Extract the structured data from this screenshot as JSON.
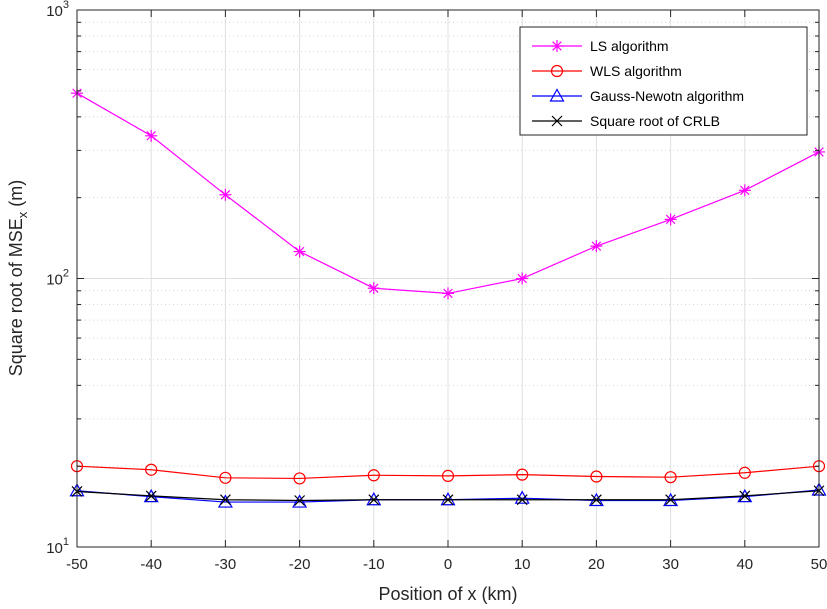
{
  "chart_data": {
    "type": "line",
    "xlabel": "Position of x (km)",
    "ylabel": "Square root of MSE",
    "ylabel_subscript": "x",
    "ylabel_unit": " (m)",
    "x": [
      -50,
      -40,
      -30,
      -20,
      -10,
      0,
      10,
      20,
      30,
      40,
      50
    ],
    "xlim": [
      -50,
      50
    ],
    "ylim": [
      10,
      1000
    ],
    "yscale": "log",
    "grid": true,
    "minor_grid": true,
    "legend_position": "top-right",
    "x_tick_labels": [
      "-50",
      "-40",
      "-30",
      "-20",
      "-10",
      "0",
      "10",
      "20",
      "30",
      "40",
      "50"
    ],
    "y_tick_labels": [
      {
        "value": 10,
        "base": "10",
        "exp": "1"
      },
      {
        "value": 100,
        "base": "10",
        "exp": "2"
      },
      {
        "value": 1000,
        "base": "10",
        "exp": "3"
      }
    ],
    "series": [
      {
        "name": "LS algorithm",
        "color": "#ff00ff",
        "marker": "asterisk",
        "values": [
          490,
          340,
          205,
          126,
          92,
          88,
          100,
          132,
          166,
          213,
          296
        ]
      },
      {
        "name": "WLS algorithm",
        "color": "#ff0000",
        "marker": "circle",
        "values": [
          20.0,
          19.4,
          18.1,
          18.0,
          18.5,
          18.4,
          18.6,
          18.3,
          18.2,
          18.9,
          20.0
        ]
      },
      {
        "name": "Gauss-Newotn algorithm",
        "color": "#0000ff",
        "marker": "triangle",
        "values": [
          16.2,
          15.4,
          14.7,
          14.7,
          15.0,
          15.0,
          15.2,
          14.9,
          14.9,
          15.4,
          16.3
        ]
      },
      {
        "name": "Square root of CRLB",
        "color": "#000000",
        "marker": "x",
        "values": [
          16.1,
          15.5,
          15.0,
          14.9,
          15.0,
          15.0,
          15.0,
          15.0,
          15.0,
          15.5,
          16.2
        ]
      }
    ]
  }
}
